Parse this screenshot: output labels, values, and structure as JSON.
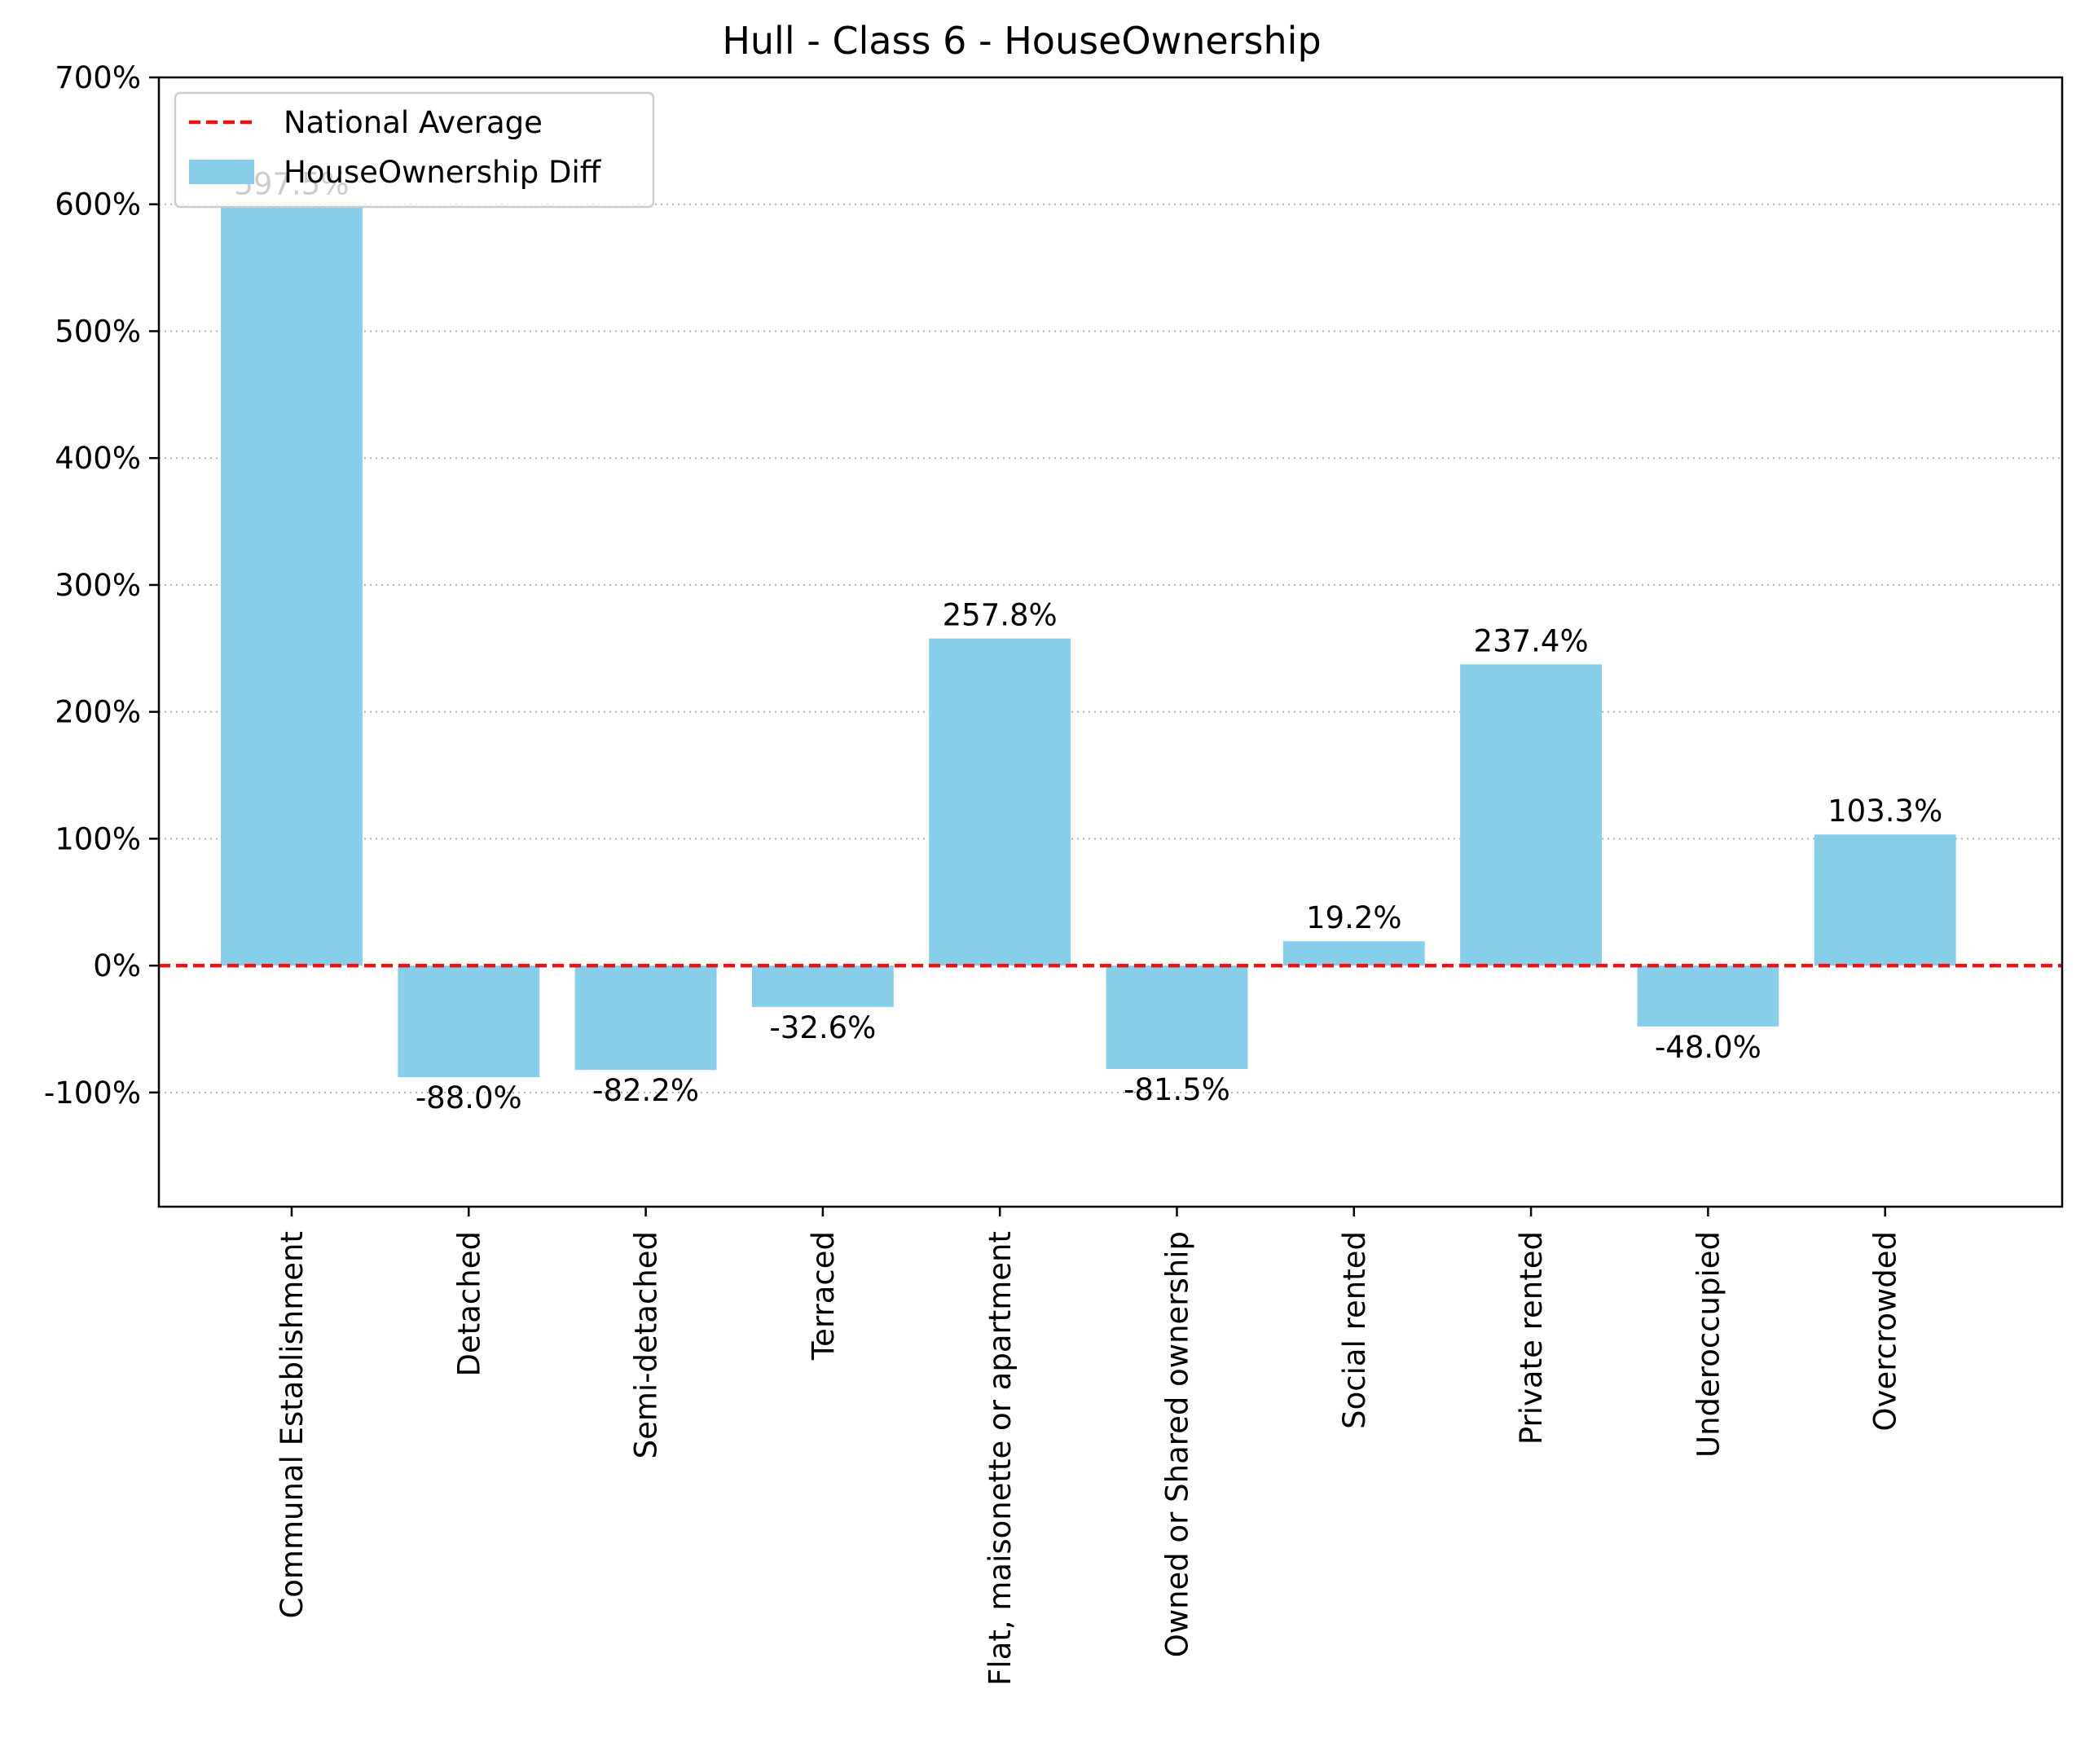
{
  "chart_data": {
    "type": "bar",
    "title": "Hull - Class 6 - HouseOwnership",
    "xlabel": "",
    "ylabel": "",
    "categories": [
      "Communal Establishment",
      "Detached",
      "Semi-detached",
      "Terraced",
      "Flat, maisonette or apartment",
      "Owned or Shared ownership",
      "Social rented",
      "Private rented",
      "Underoccupied",
      "Overcrowded"
    ],
    "series": [
      {
        "name": "HouseOwnership Diff",
        "values": [
          597.5,
          -88.0,
          -82.2,
          -32.6,
          257.8,
          -81.5,
          19.2,
          237.4,
          -48.0,
          103.3
        ],
        "labels": [
          "597.5%",
          "-88.0%",
          "-82.2%",
          "-32.6%",
          "257.8%",
          "-81.5%",
          "19.2%",
          "237.4%",
          "-48.0%",
          "103.3%"
        ],
        "color": "#87CEEB"
      }
    ],
    "reference_line": {
      "name": "National Average",
      "value": 0,
      "color": "#EE1111",
      "style": "dashed"
    },
    "ylim": [
      -190,
      700
    ],
    "yticks": [
      -100,
      0,
      100,
      200,
      300,
      400,
      500,
      600,
      700
    ],
    "ytick_labels": [
      "-100%",
      "0%",
      "100%",
      "200%",
      "300%",
      "400%",
      "500%",
      "600%",
      "700%"
    ],
    "grid": "y-dotted",
    "legend_position": "top-left"
  }
}
